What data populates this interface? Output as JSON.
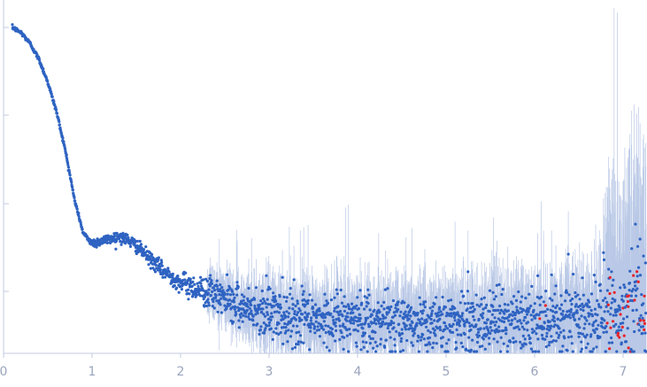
{
  "chart_data": {
    "type": "scatter",
    "title": "",
    "xlabel": "",
    "ylabel": "",
    "xlim": [
      0,
      7.27
    ],
    "x_ticks": [
      "0",
      "1",
      "2",
      "3",
      "4",
      "5",
      "6",
      "7"
    ],
    "y_tick_count": 4,
    "grid": false,
    "legend": "none",
    "colors": {
      "points": "#2f63c2",
      "error_bars": "#b9c8e6",
      "outliers": "#e8232a",
      "axis": "#c3cbe0",
      "tick_labels": "#9aa4bd"
    },
    "series": [
      {
        "values_note_free": true,
        "x": [
          0.1,
          0.2,
          0.3,
          0.4,
          0.5,
          0.6,
          0.7,
          0.8,
          0.9,
          1.0,
          1.1,
          1.2,
          1.3,
          1.4,
          1.5,
          1.6,
          1.7,
          1.8,
          1.9,
          2.0,
          2.2,
          2.4,
          2.6,
          2.8,
          3.0,
          3.3,
          3.6,
          4.0,
          4.5,
          5.0,
          5.5,
          6.0,
          6.5,
          7.0,
          7.2
        ],
        "y": [
          1.0,
          0.985,
          0.955,
          0.91,
          0.845,
          0.76,
          0.65,
          0.515,
          0.418,
          0.39,
          0.395,
          0.402,
          0.408,
          0.4,
          0.382,
          0.358,
          0.335,
          0.312,
          0.293,
          0.278,
          0.26,
          0.241,
          0.222,
          0.206,
          0.192,
          0.18,
          0.174,
          0.17,
          0.168,
          0.167,
          0.168,
          0.17,
          0.178,
          0.195,
          0.22
        ]
      }
    ]
  }
}
